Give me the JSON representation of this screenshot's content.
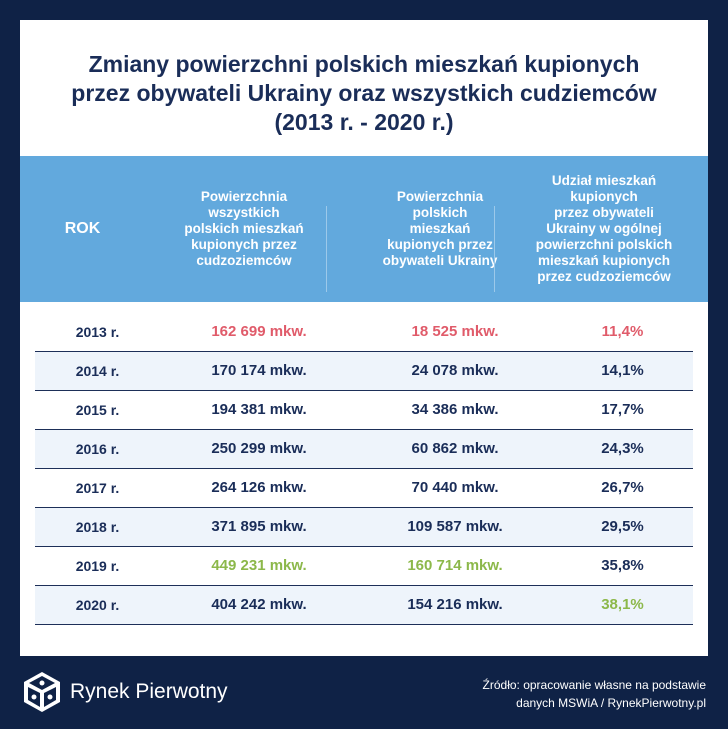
{
  "title": "Zmiany powierzchni polskich mieszkań kupionych\nprzez obywateli Ukrainy oraz wszystkich cudziemców\n(2013 r. - 2020 r.)",
  "colors": {
    "background": "#0f2246",
    "header": "#62a9dd",
    "text": "#1a2d58",
    "min_highlight": "#e05b6a",
    "max_highlight": "#8cb84a"
  },
  "chart_data": {
    "type": "table",
    "title": "Zmiany powierzchni polskich mieszkań kupionych przez obywateli Ukrainy oraz wszystkich cudziemców (2013 r. - 2020 r.)",
    "columns": [
      "ROK",
      "Powierzchnia\nwszystkich\npolskich mieszkań\nkupionych przez\ncudzoziemców",
      "Powierzchnia\npolskich\nmieszkań\nkupionych przez\nobywateli Ukrainy",
      "Udział mieszkań\nkupionych\nprzez obywateli\nUkrainy w ogólnej\npowierzchni polskich\nmieszkań kupionych\nprzez cudzoziemców"
    ],
    "rows": [
      {
        "year": "2013 r.",
        "all": "162 699 mkw.",
        "ukraine": "18 525 mkw.",
        "share": "11,4%",
        "hl_all": "red",
        "hl_ukraine": "red",
        "hl_share": "red"
      },
      {
        "year": "2014 r.",
        "all": "170 174 mkw.",
        "ukraine": "24 078 mkw.",
        "share": "14,1%",
        "hl_all": "",
        "hl_ukraine": "",
        "hl_share": ""
      },
      {
        "year": "2015 r.",
        "all": "194 381 mkw.",
        "ukraine": "34 386 mkw.",
        "share": "17,7%",
        "hl_all": "",
        "hl_ukraine": "",
        "hl_share": ""
      },
      {
        "year": "2016 r.",
        "all": "250 299 mkw.",
        "ukraine": "60 862 mkw.",
        "share": "24,3%",
        "hl_all": "",
        "hl_ukraine": "",
        "hl_share": ""
      },
      {
        "year": "2017 r.",
        "all": "264 126 mkw.",
        "ukraine": "70 440 mkw.",
        "share": "26,7%",
        "hl_all": "",
        "hl_ukraine": "",
        "hl_share": ""
      },
      {
        "year": "2018 r.",
        "all": "371 895 mkw.",
        "ukraine": "109 587 mkw.",
        "share": "29,5%",
        "hl_all": "",
        "hl_ukraine": "",
        "hl_share": ""
      },
      {
        "year": "2019 r.",
        "all": "449 231 mkw.",
        "ukraine": "160 714 mkw.",
        "share": "35,8%",
        "hl_all": "green",
        "hl_ukraine": "green",
        "hl_share": ""
      },
      {
        "year": "2020 r.",
        "all": "404 242 mkw.",
        "ukraine": "154 216 mkw.",
        "share": "38,1%",
        "hl_all": "",
        "hl_ukraine": "",
        "hl_share": "green"
      }
    ]
  },
  "footer": {
    "brand": "Rynek Pierwotny",
    "logo_icon": "rynek-pierwotny-logo-icon",
    "source": "Źródło:  opracowanie własne na podstawie\ndanych MSWiA / RynekPierwotny.pl"
  }
}
